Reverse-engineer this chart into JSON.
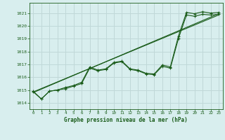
{
  "title": "Graphe pression niveau de la mer (hPa)",
  "bg_color": "#d8eeee",
  "grid_color": "#c0d8d8",
  "line_color": "#1a5c1a",
  "marker_color": "#1a5c1a",
  "xlim": [
    -0.5,
    23.5
  ],
  "ylim": [
    1013.5,
    1021.8
  ],
  "yticks": [
    1014,
    1015,
    1016,
    1017,
    1018,
    1019,
    1020,
    1021
  ],
  "xticks": [
    0,
    1,
    2,
    3,
    4,
    5,
    6,
    7,
    8,
    9,
    10,
    11,
    12,
    13,
    14,
    15,
    16,
    17,
    18,
    19,
    20,
    21,
    22,
    23
  ],
  "series1_y": [
    1014.9,
    1014.3,
    1014.9,
    1015.0,
    1015.2,
    1015.35,
    1015.6,
    1016.8,
    1016.55,
    1016.65,
    1017.15,
    1017.25,
    1016.65,
    1016.55,
    1016.3,
    1016.25,
    1016.95,
    1016.8,
    1019.2,
    1021.05,
    1020.95,
    1021.1,
    1021.0,
    1021.05
  ],
  "series2_y": [
    1014.85,
    1014.3,
    1014.9,
    1015.0,
    1015.1,
    1015.3,
    1015.5,
    1016.7,
    1016.5,
    1016.6,
    1017.1,
    1017.2,
    1016.6,
    1016.5,
    1016.25,
    1016.2,
    1016.85,
    1016.7,
    1019.0,
    1020.85,
    1020.75,
    1020.9,
    1020.85,
    1020.9
  ],
  "trend1_x": [
    0,
    23
  ],
  "trend1_y": [
    1014.85,
    1020.85
  ],
  "trend2_x": [
    0,
    23
  ],
  "trend2_y": [
    1014.8,
    1020.95
  ]
}
